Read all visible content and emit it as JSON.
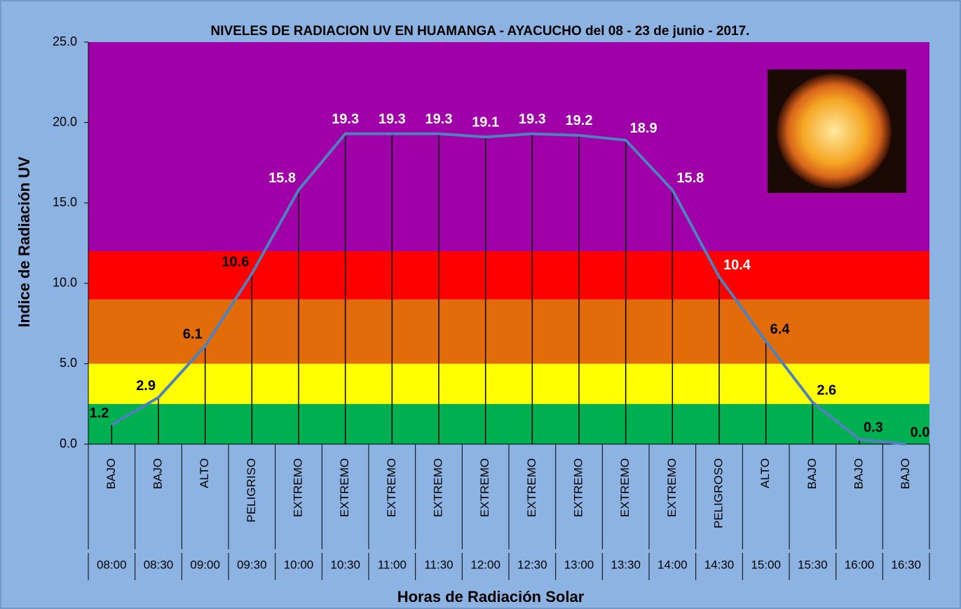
{
  "chart_data": {
    "type": "line",
    "title": "NIVELES DE RADIACION UV EN HUAMANGA - AYACUCHO del 08 - 23 de junio - 2017.",
    "x_label": "Horas de Radiación Solar",
    "y_label": "Indice de Radiación UV",
    "categories": [
      "08:00",
      "08:30",
      "09:00",
      "09:30",
      "10:00",
      "10:30",
      "11:00",
      "11:30",
      "12:00",
      "12:30",
      "13:00",
      "13:30",
      "14:00",
      "14:30",
      "15:00",
      "15:30",
      "16:00",
      "16:30"
    ],
    "levels": [
      "BAJO",
      "BAJO",
      "ALTO",
      "PELIGRISO",
      "EXTREMO",
      "EXTREMO",
      "EXTREMO",
      "EXTREMO",
      "EXTREMO",
      "EXTREMO",
      "EXTREMO",
      "EXTREMO",
      "EXTREMO",
      "PELIGROSO",
      "ALTO",
      "BAJO",
      "BAJO",
      "BAJO"
    ],
    "series": [
      {
        "color": "#4f81bd",
        "values": [
          1.2,
          2.9,
          6.1,
          10.6,
          15.8,
          19.3,
          19.3,
          19.3,
          19.1,
          19.3,
          19.2,
          18.9,
          15.8,
          10.4,
          6.4,
          2.6,
          0.3,
          0.0
        ],
        "value_labels": [
          "1.2",
          "2.9",
          "6.1",
          "10.6",
          "15.8",
          "19.3",
          "19.3",
          "19.3",
          "19.1",
          "19.3",
          "19.2",
          "18.9",
          "15.8",
          "10.4",
          "6.4",
          "2.6",
          "0.3",
          "0.0"
        ],
        "value_label_colors": [
          "#000000",
          "#000000",
          "#000000",
          "#000000",
          "#ffffff",
          "#ffffff",
          "#ffffff",
          "#ffffff",
          "#ffffff",
          "#ffffff",
          "#ffffff",
          "#ffffff",
          "#ffffff",
          "#ffffff",
          "#000000",
          "#000000",
          "#000000",
          "#000000"
        ]
      }
    ],
    "bands": [
      {
        "from": 0,
        "to": 2.5,
        "color": "#00b050"
      },
      {
        "from": 2.5,
        "to": 5,
        "color": "#ffff00"
      },
      {
        "from": 5,
        "to": 9,
        "color": "#e36c0a"
      },
      {
        "from": 9,
        "to": 12,
        "color": "#ff0000"
      },
      {
        "from": 12,
        "to": 25,
        "color": "#a000a8"
      }
    ],
    "ylim": [
      0,
      25
    ],
    "yticks": [
      {
        "value": 0,
        "label": "0.0"
      },
      {
        "value": 5,
        "label": "5.0"
      },
      {
        "value": 10,
        "label": "10.0"
      },
      {
        "value": 15,
        "label": "15.0"
      },
      {
        "value": 20,
        "label": "20.0"
      },
      {
        "value": 25,
        "label": "25.0"
      }
    ]
  }
}
